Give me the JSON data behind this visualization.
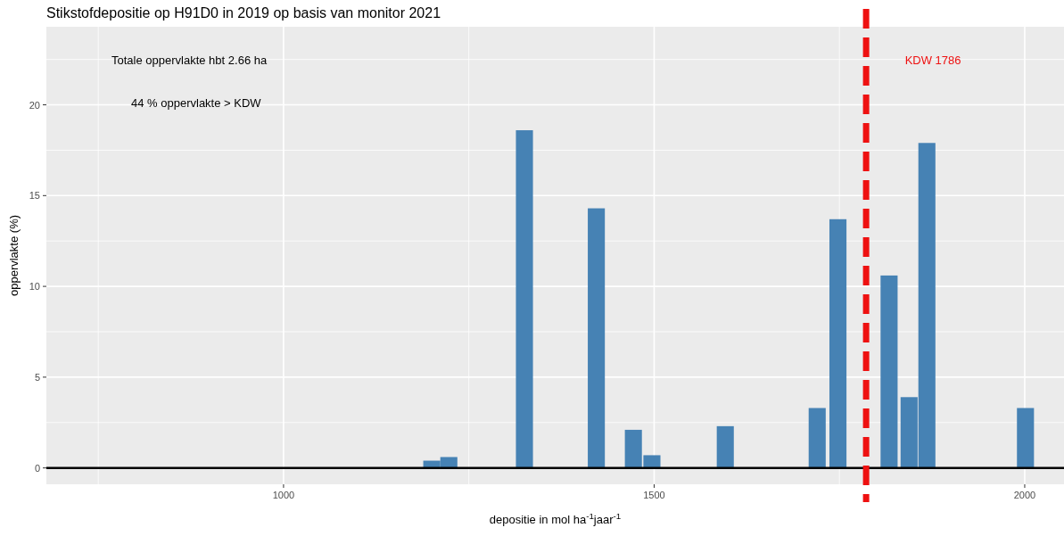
{
  "chart_data": {
    "type": "bar",
    "title": "Stikstofdepositie op H91D0 in 2019 op basis van monitor 2021",
    "xlabel": "depositie in mol ha$^{-1}$jaar$^{-1}$",
    "ylabel": "oppervlakte (%)",
    "x": [
      1200,
      1223,
      1325,
      1422,
      1472,
      1497,
      1596,
      1720,
      1748,
      1817,
      1844,
      1868,
      2001
    ],
    "values": [
      0.4,
      0.6,
      18.6,
      14.3,
      2.1,
      0.7,
      2.3,
      3.3,
      13.7,
      10.6,
      3.9,
      17.9,
      3.3
    ],
    "color": "#4682b4",
    "xlim": [
      680,
      2053
    ],
    "ylim": [
      -0.9,
      24.3
    ],
    "xticks": [
      {
        "value": 750,
        "label": null
      },
      1000,
      {
        "value": 1250,
        "label": null
      },
      1500,
      {
        "value": 1750,
        "label": null
      },
      2000
    ],
    "yticks": [
      0,
      {
        "value": 2.5,
        "label": null
      },
      5,
      {
        "value": 7.5,
        "label": null
      },
      10,
      {
        "value": 12.5,
        "label": null
      },
      15,
      {
        "value": 17.5,
        "label": null
      },
      20,
      {
        "value": 22.5,
        "label": null
      }
    ],
    "grid": true,
    "ref_lines": [
      {
        "axis": "y",
        "value": 0,
        "color": "#000000",
        "line_style": "solid"
      },
      {
        "axis": "x",
        "value": 1786,
        "label": "KDW 1786",
        "color": "#ee1111",
        "line_style": "dashed"
      }
    ],
    "annotations": [
      "Totale oppervlakte hbt 2.66 ha",
      "44 % oppervlakte > KDW"
    ]
  }
}
